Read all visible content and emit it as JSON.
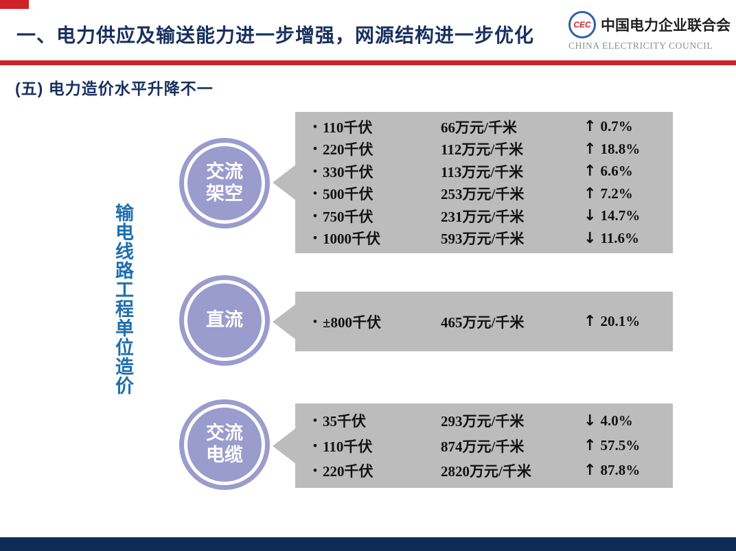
{
  "header": {
    "title": "一、电力供应及输送能力进一步增强，网源结构进一步优化",
    "logo": {
      "emblem": "CEC",
      "name_cn": "中国电力企业联合会",
      "name_en": "CHINA ELECTRICITY COUNCIL"
    }
  },
  "section": {
    "subtitle": "(五) 电力造价水平升降不一"
  },
  "diagram": {
    "side_label": "输电线路工程单位造价",
    "groups": [
      {
        "label": "交流架空",
        "rows": [
          {
            "voltage": "110千伏",
            "cost": "66万元/千米",
            "arrow": "↑",
            "change": "0.7%"
          },
          {
            "voltage": "220千伏",
            "cost": "112万元/千米",
            "arrow": "↑",
            "change": "18.8%"
          },
          {
            "voltage": "330千伏",
            "cost": "113万元/千米",
            "arrow": "↑",
            "change": "6.6%"
          },
          {
            "voltage": "500千伏",
            "cost": "253万元/千米",
            "arrow": "↑",
            "change": "7.2%"
          },
          {
            "voltage": "750千伏",
            "cost": "231万元/千米",
            "arrow": "↓",
            "change": "14.7%"
          },
          {
            "voltage": "1000千伏",
            "cost": "593万元/千米",
            "arrow": "↓",
            "change": "11.6%"
          }
        ]
      },
      {
        "label": "直流",
        "rows": [
          {
            "voltage": "±800千伏",
            "cost": "465万元/千米",
            "arrow": "↑",
            "change": "20.1%"
          }
        ]
      },
      {
        "label": "交流电缆",
        "rows": [
          {
            "voltage": "35千伏",
            "cost": "293万元/千米",
            "arrow": "↓",
            "change": "4.0%"
          },
          {
            "voltage": "110千伏",
            "cost": "874万元/千米",
            "arrow": "↑",
            "change": "57.5%"
          },
          {
            "voltage": "220千伏",
            "cost": "2820万元/千米",
            "arrow": "↑",
            "change": "87.8%"
          }
        ]
      }
    ]
  },
  "icons": {
    "bullet": "•",
    "up_arrow": "↑",
    "down_arrow": "↓"
  },
  "colors": {
    "title_navy": "#17305f",
    "accent_red": "#cf2127",
    "side_label_blue": "#1e6fae",
    "circle_periwinkle": "#9a9ccd",
    "box_gray": "#bdbcbc",
    "footer_navy": "#0e2c55"
  }
}
